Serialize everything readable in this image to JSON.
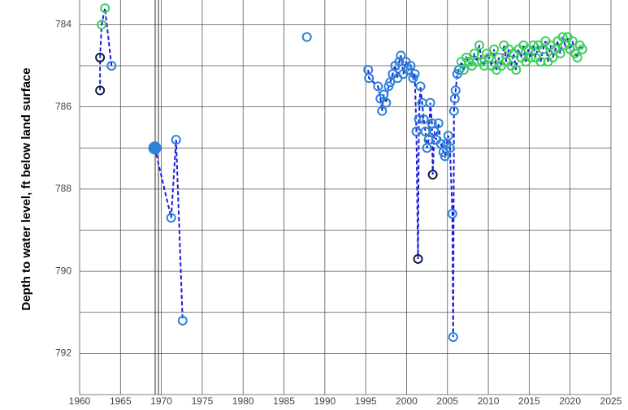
{
  "chart_data": {
    "type": "scatter-line",
    "y_label": "Depth to water level, ft below land surface",
    "xlim": [
      1960,
      2025
    ],
    "xticks": [
      1960,
      1965,
      1970,
      1975,
      1980,
      1985,
      1990,
      1995,
      2000,
      2005,
      2010,
      2015,
      2020,
      2025
    ],
    "ylim": [
      783.4,
      793
    ],
    "yticks": [
      784,
      786,
      788,
      790,
      792
    ],
    "yminor_grid": [
      785,
      787,
      789,
      791,
      793
    ],
    "grid": true,
    "line_color": "#1a1ae0",
    "series": [
      {
        "x": [
          1962.5,
          1962.5,
          1962.7,
          1963.1,
          1963.9
        ],
        "values": [
          785.6,
          784.8,
          784.0,
          783.6,
          785.0
        ],
        "colors": [
          "#0c1c3a",
          "#0c1c3a",
          "#3ccf5c",
          "#3ccf5c",
          "#2b83d6"
        ]
      },
      {
        "x": [
          1969.2,
          1971.2,
          1971.8,
          1972.6
        ],
        "values": [
          787.0,
          788.7,
          786.8,
          791.2
        ],
        "colors": [
          "#2b83d6",
          "#2b83d6",
          "#2b83d6",
          "#2b83d6"
        ],
        "filled": [
          true,
          false,
          false,
          false
        ]
      },
      {
        "x": [
          1987.8
        ],
        "values": [
          784.3
        ],
        "colors": [
          "#2b83d6"
        ]
      },
      {
        "x": [
          1995.3,
          1995.4,
          1996.5,
          1996.8,
          1997.0,
          1997.2,
          1997.5,
          1997.8,
          1998.0,
          1998.3,
          1998.6,
          1998.9,
          1999.1,
          1999.3,
          1999.6,
          1999.9,
          2000.2,
          2000.5,
          2000.8,
          2001.0,
          2001.2,
          2001.4,
          2001.5,
          2001.7,
          2001.9,
          2002.1,
          2002.3,
          2002.5,
          2002.7,
          2002.9,
          2003.1,
          2003.2,
          2003.4,
          2003.6,
          2003.9,
          2004.2,
          2004.5,
          2004.7,
          2004.9,
          2005.1,
          2005.3,
          2005.6,
          2005.7,
          2005.8,
          2005.9,
          2006.0,
          2006.2,
          2006.4,
          2006.7,
          2007.0,
          2007.3,
          2007.6,
          2008.0,
          2008.3,
          2008.6,
          2008.9,
          2009.2,
          2009.5,
          2009.8,
          2010.1,
          2010.4,
          2010.7,
          2011.0,
          2011.3,
          2011.6,
          2011.9,
          2012.2,
          2012.5,
          2012.8,
          2013.1,
          2013.4,
          2013.7,
          2014.0,
          2014.3,
          2014.6,
          2014.9,
          2015.2,
          2015.5,
          2015.8,
          2016.1,
          2016.4,
          2016.7,
          2017.0,
          2017.3,
          2017.6,
          2017.9,
          2018.2,
          2018.5,
          2018.8,
          2019.1,
          2019.4,
          2019.7,
          2020.0,
          2020.3,
          2020.6,
          2020.9,
          2021.2,
          2021.5
        ],
        "values": [
          785.1,
          785.3,
          785.5,
          785.8,
          786.1,
          785.7,
          785.9,
          785.5,
          785.4,
          785.2,
          785.0,
          785.3,
          784.9,
          784.75,
          785.2,
          784.9,
          785.1,
          785.0,
          785.3,
          785.2,
          786.6,
          789.7,
          786.3,
          785.5,
          785.9,
          786.3,
          786.6,
          787.0,
          786.8,
          785.9,
          786.4,
          787.65,
          786.6,
          786.8,
          786.4,
          786.9,
          787.1,
          787.2,
          786.9,
          786.7,
          787.0,
          788.6,
          791.6,
          786.1,
          785.8,
          785.6,
          785.2,
          785.1,
          784.9,
          785.1,
          784.8,
          784.9,
          785.0,
          784.7,
          784.9,
          784.5,
          784.9,
          785.0,
          784.7,
          784.8,
          785.0,
          784.6,
          785.1,
          784.8,
          785.0,
          784.5,
          784.9,
          784.6,
          785.0,
          784.7,
          785.1,
          784.6,
          784.8,
          784.5,
          784.9,
          784.6,
          784.8,
          784.5,
          784.8,
          784.5,
          784.9,
          784.6,
          784.4,
          784.9,
          784.5,
          784.8,
          784.6,
          784.4,
          784.7,
          784.3,
          784.5,
          784.3,
          784.6,
          784.4,
          784.7,
          784.8,
          784.5,
          784.6
        ],
        "colors": [
          "#2b83d6",
          "#2b83d6",
          "#2b83d6",
          "#2b83d6",
          "#2b83d6",
          "#2b83d6",
          "#2b83d6",
          "#2b83d6",
          "#2b83d6",
          "#2b83d6",
          "#2b83d6",
          "#2b83d6",
          "#2b83d6",
          "#2b83d6",
          "#2b83d6",
          "#2b83d6",
          "#2b83d6",
          "#2b83d6",
          "#2b83d6",
          "#2b83d6",
          "#2b83d6",
          "#0c1c3a",
          "#2b83d6",
          "#2b83d6",
          "#2b83d6",
          "#2b83d6",
          "#2b83d6",
          "#2b83d6",
          "#2b83d6",
          "#2b83d6",
          "#2b83d6",
          "#0c1c3a",
          "#2b83d6",
          "#2b83d6",
          "#2b83d6",
          "#2b83d6",
          "#2b83d6",
          "#2b83d6",
          "#2b83d6",
          "#2b83d6",
          "#2b83d6",
          "#2b83d6",
          "#2b83d6",
          "#2b83d6",
          "#2b83d6",
          "#2b83d6",
          "#2b83d6",
          "#2b83d6",
          "#3ccf5c",
          "#3ccf5c",
          "#3ccf5c",
          "#3ccf5c",
          "#3ccf5c",
          "#3ccf5c",
          "#3ccf5c",
          "#3ccf5c",
          "#3ccf5c",
          "#3ccf5c",
          "#3ccf5c",
          "#3ccf5c",
          "#3ccf5c",
          "#3ccf5c",
          "#3ccf5c",
          "#3ccf5c",
          "#3ccf5c",
          "#3ccf5c",
          "#3ccf5c",
          "#3ccf5c",
          "#3ccf5c",
          "#3ccf5c",
          "#3ccf5c",
          "#3ccf5c",
          "#3ccf5c",
          "#3ccf5c",
          "#3ccf5c",
          "#3ccf5c",
          "#3ccf5c",
          "#3ccf5c",
          "#3ccf5c",
          "#3ccf5c",
          "#3ccf5c",
          "#3ccf5c",
          "#3ccf5c",
          "#3ccf5c",
          "#3ccf5c",
          "#3ccf5c",
          "#3ccf5c",
          "#3ccf5c",
          "#3ccf5c",
          "#3ccf5c",
          "#3ccf5c",
          "#3ccf5c",
          "#3ccf5c",
          "#3ccf5c",
          "#3ccf5c",
          "#3ccf5c",
          "#3ccf5c",
          "#3ccf5c"
        ]
      }
    ]
  }
}
